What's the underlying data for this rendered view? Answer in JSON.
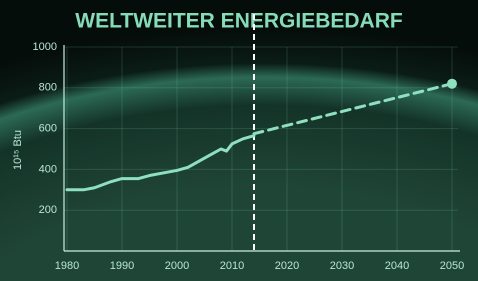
{
  "chart_data": {
    "type": "line",
    "title": "WELTWEITER ENERGIEBEDARF",
    "y_label": "10¹⁵ Btu",
    "xlim": [
      1980,
      2050
    ],
    "xticks": [
      1980,
      1990,
      2000,
      2010,
      2020,
      2030,
      2040,
      2050
    ],
    "ylim": [
      0,
      1000
    ],
    "yticks": [
      200,
      400,
      600,
      800,
      1000
    ],
    "grid": true,
    "divider_x": 2014,
    "series": [
      {
        "color": "#8fe0c0",
        "style": "solid",
        "x": [
          1980,
          1983,
          1985,
          1988,
          1990,
          1993,
          1995,
          1998,
          2000,
          2002,
          2004,
          2006,
          2008,
          2009,
          2010,
          2012,
          2014
        ],
        "values": [
          300,
          300,
          310,
          340,
          355,
          355,
          370,
          385,
          395,
          410,
          440,
          470,
          500,
          490,
          525,
          550,
          565
        ]
      },
      {
        "color": "#8fe0c0",
        "style": "dashed",
        "end_marker": true,
        "x": [
          2014,
          2050
        ],
        "values": [
          575,
          820
        ]
      }
    ]
  }
}
